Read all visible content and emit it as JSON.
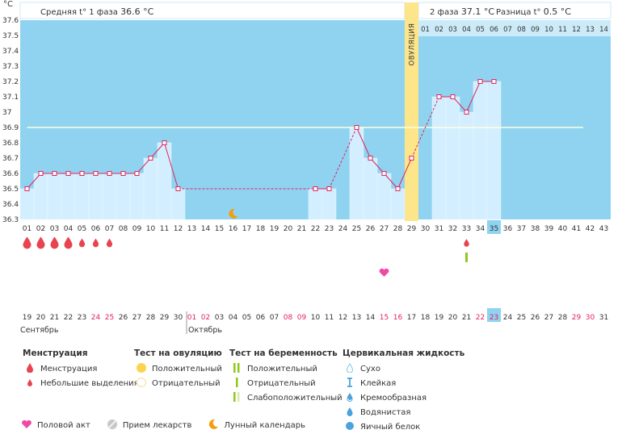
{
  "header": {
    "unit": "°C",
    "phase1_label": "Средняя t° 1 фаза",
    "phase1_value": "36.6 °C",
    "phase2_label": "2 фаза",
    "phase2_value": "37.1 °C",
    "diff_label": "Разница t°",
    "diff_value": "0.5 °C",
    "ovulation_label": "ОВУЛЯЦИЯ"
  },
  "colors": {
    "plot_bg": "#8fd3f0",
    "bar_fill": "#d3efff",
    "line": "#e0245e",
    "coverline": "#ffffe0",
    "ovulation": "#fde68a",
    "highlight": "#8fd3f0",
    "red_text": "#e0245e"
  },
  "chart_data": {
    "type": "line",
    "title": "",
    "ylabel": "°C",
    "ylim": [
      36.3,
      37.6
    ],
    "yticks": [
      "36.3",
      "36.4",
      "36.5",
      "36.6",
      "36.7",
      "36.8",
      "36.9",
      "37",
      "37.1",
      "37.2",
      "37.3",
      "37.4",
      "37.5",
      "37.6"
    ],
    "cycle_days": [
      "01",
      "02",
      "03",
      "04",
      "05",
      "06",
      "07",
      "08",
      "09",
      "10",
      "11",
      "12",
      "13",
      "14",
      "15",
      "16",
      "17",
      "18",
      "19",
      "20",
      "21",
      "22",
      "23",
      "24",
      "25",
      "26",
      "27",
      "28",
      "29",
      "30",
      "31",
      "32",
      "33",
      "34",
      "35",
      "36",
      "37",
      "38",
      "39",
      "40",
      "41",
      "42",
      "43"
    ],
    "temperature": [
      36.5,
      36.6,
      36.6,
      36.6,
      36.6,
      36.6,
      36.6,
      36.6,
      36.6,
      36.7,
      36.8,
      36.5,
      null,
      null,
      null,
      null,
      null,
      null,
      null,
      null,
      null,
      36.5,
      36.5,
      null,
      36.9,
      36.7,
      36.6,
      36.5,
      36.7,
      null,
      37.1,
      37.1,
      37.0,
      37.2,
      37.2,
      null,
      null,
      null,
      null,
      null,
      null,
      null,
      null
    ],
    "coverline": 36.9,
    "ovulation_day": "29",
    "post_ovulation_days": [
      "01",
      "02",
      "03",
      "04",
      "05",
      "06",
      "07",
      "08",
      "09",
      "10",
      "11",
      "12",
      "13",
      "14"
    ],
    "highlighted_day": "35",
    "calendar_dates": [
      "19",
      "20",
      "21",
      "22",
      "23",
      "24",
      "25",
      "26",
      "27",
      "28",
      "29",
      "30",
      "01",
      "02",
      "03",
      "04",
      "05",
      "06",
      "07",
      "08",
      "09",
      "10",
      "11",
      "12",
      "13",
      "14",
      "15",
      "16",
      "17",
      "18",
      "19",
      "20",
      "21",
      "22",
      "23",
      "24",
      "25",
      "26",
      "27",
      "28",
      "29",
      "30",
      "31"
    ],
    "red_dates_index": [
      5,
      6,
      12,
      13,
      19,
      20,
      26,
      27,
      33,
      34,
      40,
      41
    ],
    "months": [
      "Сентябрь",
      "Октябрь"
    ],
    "menstruation_days": [
      "01",
      "02",
      "03",
      "04",
      "05",
      "06",
      "07"
    ],
    "intercourse_day": "27",
    "moon_day": "16",
    "late_drop_day": "33",
    "pregnancy_test_day": "33"
  },
  "legend": {
    "menstruation": {
      "title": "Менструация",
      "items": [
        "Менструация",
        "Небольшие выделения"
      ]
    },
    "ovulation_test": {
      "title": "Тест на овуляцию",
      "items": [
        "Положительный",
        "Отрицательный"
      ]
    },
    "pregnancy_test": {
      "title": "Тест на беременность",
      "items": [
        "Положительный",
        "Отрицательный",
        "Слабоположительный"
      ]
    },
    "cervical": {
      "title": "Цервикальная жидкость",
      "items": [
        "Сухо",
        "Клейкая",
        "Кремообразная",
        "Водянистая",
        "Яичный белок"
      ]
    },
    "bottom": [
      "Половой акт",
      "Прием лекарств",
      "Лунный календарь"
    ]
  }
}
